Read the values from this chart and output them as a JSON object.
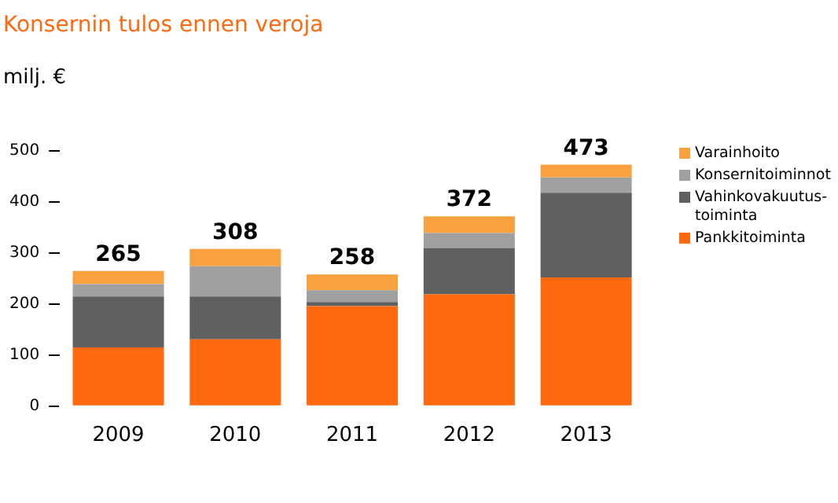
{
  "chart_data": {
    "type": "bar",
    "title": "Konsernin tulos ennen veroja",
    "subtitle": "milj. €",
    "categories": [
      "2009",
      "2010",
      "2011",
      "2012",
      "2013"
    ],
    "stacked": true,
    "legend": "right",
    "grid": false,
    "ylim": [
      0,
      500
    ],
    "yticks": [
      0,
      100,
      200,
      300,
      400,
      500
    ],
    "series": [
      {
        "name": "Pankkitoiminta",
        "color": "#ff6a10",
        "values": [
          115,
          131,
          196,
          219,
          252
        ]
      },
      {
        "name": "Vahinkovakuutus-toiminta",
        "color": "#606060",
        "values": [
          100,
          84,
          8,
          91,
          166
        ]
      },
      {
        "name": "Konsernitoiminnot",
        "color": "#a0a0a0",
        "values": [
          24,
          59,
          23,
          29,
          30
        ]
      },
      {
        "name": "Varainhoito",
        "color": "#f9a03f",
        "values": [
          26,
          34,
          31,
          33,
          25
        ]
      }
    ],
    "totals": [
      "265",
      "308",
      "258",
      "372",
      "473"
    ]
  }
}
